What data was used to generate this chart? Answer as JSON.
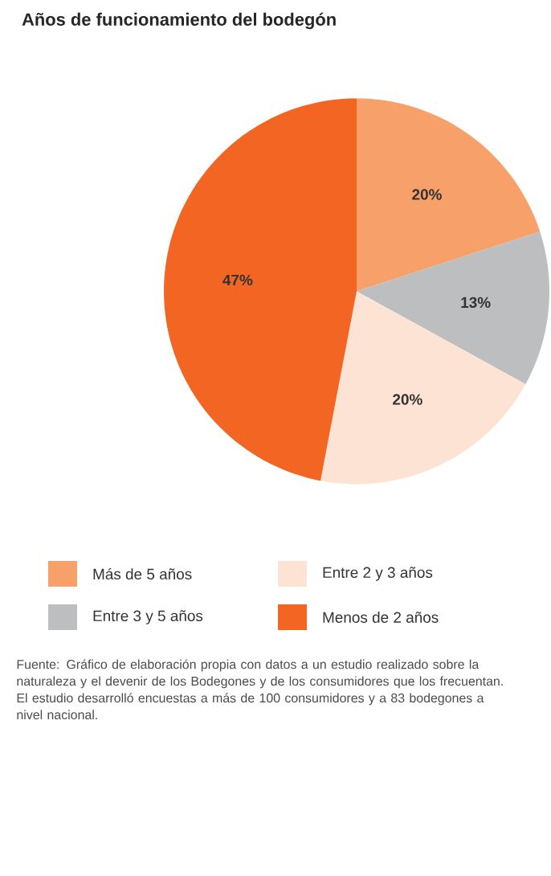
{
  "chart_data": {
    "type": "pie",
    "title": "Años de funcionamiento del bodegón",
    "categories": [
      "Más de 5 años",
      "Entre 3 y 5 años",
      "Entre 2 y 3 años",
      "Menos de 2 años"
    ],
    "values": [
      20,
      13,
      20,
      47
    ],
    "colors": [
      "#f7a06a",
      "#bcbec0",
      "#fde3d3",
      "#f26522"
    ],
    "value_labels": [
      "20%",
      "13%",
      "20%",
      "47%"
    ],
    "legend": "bottom",
    "annotations": [
      "Fuente: Gráfico de elaboración propia con datos a un estudio realizado sobre la naturaleza y el devenir de los Bodegones y de los consumidores que los frecuentan. El estudio desarrolló encuestas a más de 100 consumidores y a 83 bodegones a nivel nacional."
    ]
  }
}
